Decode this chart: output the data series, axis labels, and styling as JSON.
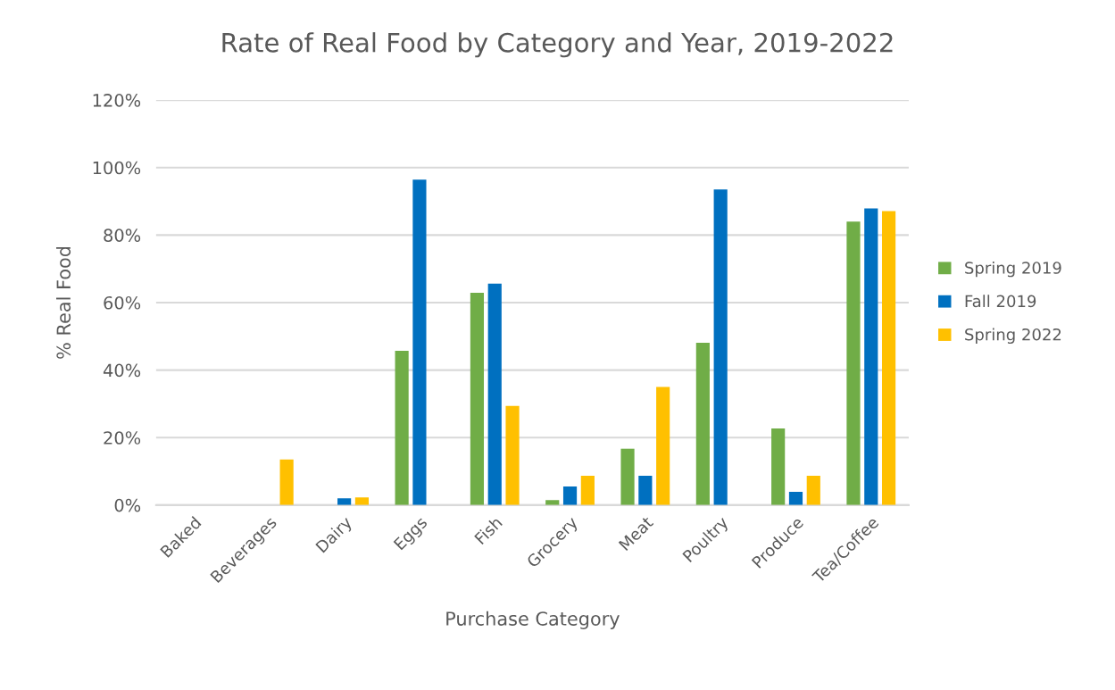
{
  "chart_data": {
    "type": "bar",
    "title": "Rate of Real Food by Category and Year, 2019-2022",
    "xlabel": "Purchase Category",
    "ylabel": "% Real Food",
    "categories": [
      "Baked",
      "Beverages",
      "Dairy",
      "Eggs",
      "Fish",
      "Grocery",
      "Meat",
      "Poultry",
      "Produce",
      "Tea/Coffee"
    ],
    "series": [
      {
        "name": "Spring 2019",
        "color": "#70ad47",
        "values": [
          0,
          0,
          0,
          45.7,
          62.9,
          1.5,
          16.7,
          48.1,
          22.7,
          84.0
        ]
      },
      {
        "name": "Fall 2019",
        "color": "#0070c0",
        "values": [
          0,
          0,
          2.0,
          96.4,
          65.6,
          5.5,
          8.7,
          93.5,
          3.9,
          87.9
        ]
      },
      {
        "name": "Spring 2022",
        "color": "#ffc000",
        "values": [
          0,
          13.5,
          2.3,
          0,
          29.4,
          8.7,
          35.0,
          0,
          8.7,
          87.1
        ]
      }
    ],
    "ylim": [
      0,
      120
    ],
    "yticks": [
      {
        "value": 0,
        "label": "0%"
      },
      {
        "value": 20,
        "label": "20%"
      },
      {
        "value": 40,
        "label": "40%"
      },
      {
        "value": 60,
        "label": "60%"
      },
      {
        "value": 80,
        "label": "80%"
      },
      {
        "value": 100,
        "label": "100%"
      },
      {
        "value": 120,
        "label": "120%"
      }
    ],
    "grid": "y",
    "legend": "right"
  }
}
